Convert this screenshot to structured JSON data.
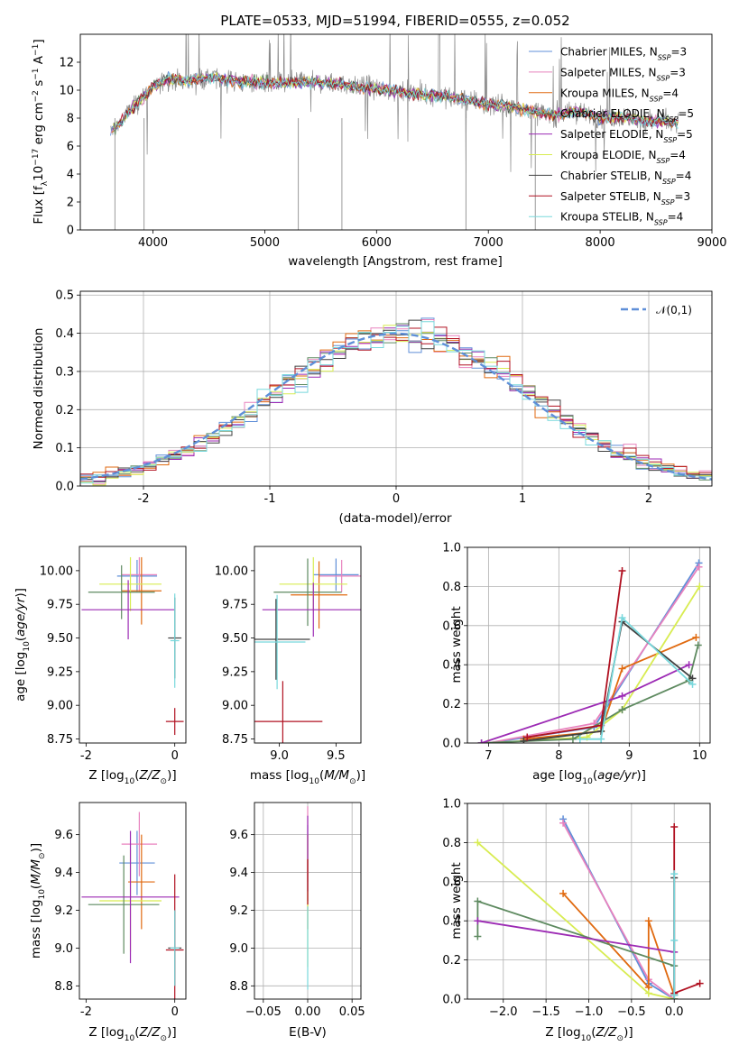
{
  "figure": {
    "title": "PLATE=0533, MJD=51994, FIBERID=0555, z=0.052"
  },
  "chart_data": [
    {
      "id": "spectrum",
      "type": "line",
      "xlabel": "wavelength [Angstrom, rest frame]",
      "ylabel": "Flux [f_λ 10^-17 erg cm^-2 s^-1 A^-1]",
      "xlim": [
        3350,
        9000
      ],
      "ylim": [
        0,
        14
      ],
      "xticks": [
        4000,
        5000,
        6000,
        7000,
        8000,
        9000
      ],
      "yticks": [
        0,
        2,
        4,
        6,
        8,
        10,
        12
      ],
      "legend_position": "top-right",
      "observed_continuum": [
        [
          3620,
          7.0
        ],
        [
          3700,
          7.6
        ],
        [
          3800,
          8.6
        ],
        [
          3900,
          9.4
        ],
        [
          4000,
          10.2
        ],
        [
          4100,
          10.7
        ],
        [
          4200,
          10.8
        ],
        [
          4300,
          10.6
        ],
        [
          4400,
          10.8
        ],
        [
          4500,
          10.9
        ],
        [
          4600,
          10.8
        ],
        [
          4700,
          10.7
        ],
        [
          4800,
          10.6
        ],
        [
          4900,
          10.6
        ],
        [
          5000,
          10.5
        ],
        [
          5200,
          10.5
        ],
        [
          5400,
          10.6
        ],
        [
          5600,
          10.5
        ],
        [
          5800,
          10.3
        ],
        [
          6000,
          10.1
        ],
        [
          6200,
          9.9
        ],
        [
          6400,
          9.7
        ],
        [
          6600,
          9.6
        ],
        [
          6800,
          9.3
        ],
        [
          7000,
          9.0
        ],
        [
          7200,
          8.8
        ],
        [
          7400,
          8.5
        ],
        [
          7600,
          8.2
        ],
        [
          7800,
          8.5
        ],
        [
          8000,
          8.0
        ],
        [
          8200,
          8.1
        ],
        [
          8400,
          7.8
        ],
        [
          8600,
          7.8
        ],
        [
          8700,
          7.6
        ]
      ],
      "model_range": [
        3620,
        8700
      ],
      "series": [
        {
          "name": "Chabrier MILES, N_SSP=3",
          "color": "#5f8fd8"
        },
        {
          "name": "Salpeter MILES, N_SSP=3",
          "color": "#e882be"
        },
        {
          "name": "Kroupa MILES, N_SSP=4",
          "color": "#e06a10"
        },
        {
          "name": "Chabrier ELODIE, N_SSP=5",
          "color": "#5e8a60"
        },
        {
          "name": "Salpeter ELODIE, N_SSP=5",
          "color": "#9c2ab4"
        },
        {
          "name": "Kroupa ELODIE, N_SSP=4",
          "color": "#d8ec52"
        },
        {
          "name": "Chabrier STELIB, N_SSP=4",
          "color": "#404040"
        },
        {
          "name": "Salpeter STELIB, N_SSP=3",
          "color": "#b01020"
        },
        {
          "name": "Kroupa STELIB, N_SSP=4",
          "color": "#78d8dc"
        }
      ]
    },
    {
      "id": "residuals",
      "type": "histogram",
      "xlabel": "(data-model)/error",
      "ylabel": "Normed distribution",
      "xlim": [
        -2.5,
        2.5
      ],
      "ylim": [
        0,
        0.51
      ],
      "xticks": [
        -2,
        -1,
        0,
        1,
        2
      ],
      "yticks": [
        0.0,
        0.1,
        0.2,
        0.3,
        0.4,
        0.5
      ],
      "grid": true,
      "legend_position": "top-right",
      "reference": {
        "name": "𝒩(0,1)",
        "color": "#5f8fd8",
        "style": "dashed"
      },
      "bin_width": 0.1
    },
    {
      "id": "age_vs_Z",
      "type": "errorbar",
      "xlabel": "Z [log10(Z/Z⊙)]",
      "ylabel": "age  [log10(age/yr)]",
      "xlim": [
        -2.15,
        0.25
      ],
      "ylim": [
        8.72,
        10.18
      ],
      "xticks": [
        -2,
        0
      ],
      "yticks": [
        8.75,
        9.0,
        9.25,
        9.5,
        9.75,
        10.0
      ],
      "points": [
        {
          "color": "#5f8fd8",
          "x": -0.85,
          "xerr": 0.45,
          "y": 9.96,
          "yerr": 0.12
        },
        {
          "color": "#e882be",
          "x": -0.8,
          "xerr": 0.4,
          "y": 9.97,
          "yerr": 0.13
        },
        {
          "color": "#e06a10",
          "x": -0.75,
          "xerr": 0.45,
          "y": 9.85,
          "yerr": 0.25
        },
        {
          "color": "#d8ec52",
          "x": -1.0,
          "xerr": 0.7,
          "y": 9.9,
          "yerr": 0.2
        },
        {
          "color": "#5e8a60",
          "x": -1.2,
          "xerr": 0.75,
          "y": 9.84,
          "yerr": 0.2
        },
        {
          "color": "#9c2ab4",
          "x": -1.05,
          "xerr": 1.05,
          "y": 9.71,
          "yerr": 0.22
        },
        {
          "color": "#404040",
          "x": 0.0,
          "xerr": 0.15,
          "y": 9.5,
          "yerr": 0.3
        },
        {
          "color": "#b01020",
          "x": 0.0,
          "xerr": 0.2,
          "y": 8.88,
          "yerr": 0.1
        },
        {
          "color": "#78d8dc",
          "x": 0.0,
          "xerr": 0.1,
          "y": 9.48,
          "yerr": 0.35
        }
      ]
    },
    {
      "id": "age_vs_mass",
      "type": "errorbar",
      "xlabel": "mass [log10(M/M⊙)]",
      "ylabel": "",
      "xlim": [
        8.78,
        9.72
      ],
      "ylim": [
        8.72,
        10.18
      ],
      "xticks": [
        9.0,
        9.5
      ],
      "yticks": [
        8.75,
        9.0,
        9.25,
        9.5,
        9.75,
        10.0
      ],
      "points": [
        {
          "color": "#5f8fd8",
          "x": 9.5,
          "xerr": 0.2,
          "y": 9.97,
          "yerr": 0.12
        },
        {
          "color": "#e882be",
          "x": 9.55,
          "xerr": 0.2,
          "y": 9.96,
          "yerr": 0.12
        },
        {
          "color": "#e06a10",
          "x": 9.35,
          "xerr": 0.25,
          "y": 9.82,
          "yerr": 0.25
        },
        {
          "color": "#d8ec52",
          "x": 9.3,
          "xerr": 0.3,
          "y": 9.9,
          "yerr": 0.2
        },
        {
          "color": "#5e8a60",
          "x": 9.25,
          "xerr": 0.3,
          "y": 9.84,
          "yerr": 0.25
        },
        {
          "color": "#9c2ab4",
          "x": 9.3,
          "xerr": 0.45,
          "y": 9.71,
          "yerr": 0.2
        },
        {
          "color": "#404040",
          "x": 8.97,
          "xerr": 0.3,
          "y": 9.49,
          "yerr": 0.3
        },
        {
          "color": "#b01020",
          "x": 9.03,
          "xerr": 0.35,
          "y": 8.88,
          "yerr": 0.3
        },
        {
          "color": "#78d8dc",
          "x": 8.98,
          "xerr": 0.25,
          "y": 9.47,
          "yerr": 0.35
        }
      ]
    },
    {
      "id": "weight_vs_age",
      "type": "line",
      "xlabel": "age  [log10(age/yr)]",
      "ylabel": "mass weight",
      "xlim": [
        6.7,
        10.15
      ],
      "ylim": [
        0,
        1.0
      ],
      "xticks": [
        7,
        8,
        9,
        10
      ],
      "yticks": [
        0.0,
        0.2,
        0.4,
        0.6,
        0.8,
        1.0
      ],
      "grid": true,
      "series": [
        {
          "color": "#5f8fd8",
          "x": [
            7.0,
            8.5,
            9.99
          ],
          "y": [
            0.0,
            0.08,
            0.92
          ]
        },
        {
          "color": "#e882be",
          "x": [
            7.0,
            8.5,
            9.99
          ],
          "y": [
            0.0,
            0.1,
            0.9
          ]
        },
        {
          "color": "#e06a10",
          "x": [
            7.5,
            8.6,
            8.9,
            9.95
          ],
          "y": [
            0.02,
            0.06,
            0.38,
            0.54
          ]
        },
        {
          "color": "#d8ec52",
          "x": [
            7.0,
            8.4,
            8.9,
            10.0
          ],
          "y": [
            0.0,
            0.03,
            0.17,
            0.8
          ]
        },
        {
          "color": "#5e8a60",
          "x": [
            6.9,
            8.2,
            8.9,
            9.85,
            9.98
          ],
          "y": [
            0.0,
            0.02,
            0.17,
            0.32,
            0.5
          ]
        },
        {
          "color": "#9c2ab4",
          "x": [
            6.9,
            8.9,
            9.85
          ],
          "y": [
            0.0,
            0.24,
            0.4
          ]
        },
        {
          "color": "#404040",
          "x": [
            7.5,
            8.6,
            8.9,
            9.9
          ],
          "y": [
            0.01,
            0.06,
            0.62,
            0.33
          ]
        },
        {
          "color": "#b01020",
          "x": [
            7.55,
            8.6,
            8.9
          ],
          "y": [
            0.03,
            0.09,
            0.88
          ]
        },
        {
          "color": "#78d8dc",
          "x": [
            8.3,
            8.6,
            8.9,
            9.9
          ],
          "y": [
            0.02,
            0.02,
            0.64,
            0.3
          ]
        }
      ]
    },
    {
      "id": "mass_vs_Z",
      "type": "errorbar",
      "xlabel": "Z [log10(Z/Z⊙)]",
      "ylabel": "mass [log10(M/M⊙)]",
      "xlim": [
        -2.15,
        0.25
      ],
      "ylim": [
        8.73,
        9.77
      ],
      "xticks": [
        -2,
        0
      ],
      "yticks": [
        8.8,
        9.0,
        9.2,
        9.4,
        9.6
      ],
      "points": [
        {
          "color": "#5f8fd8",
          "x": -0.85,
          "xerr": 0.4,
          "y": 9.45,
          "yerr": 0.17
        },
        {
          "color": "#e882be",
          "x": -0.8,
          "xerr": 0.4,
          "y": 9.55,
          "yerr": 0.17
        },
        {
          "color": "#e06a10",
          "x": -0.75,
          "xerr": 0.3,
          "y": 9.35,
          "yerr": 0.25
        },
        {
          "color": "#d8ec52",
          "x": -1.0,
          "xerr": 0.7,
          "y": 9.25,
          "yerr": 0.27
        },
        {
          "color": "#5e8a60",
          "x": -1.15,
          "xerr": 0.8,
          "y": 9.23,
          "yerr": 0.26
        },
        {
          "color": "#9c2ab4",
          "x": -1.0,
          "xerr": 1.1,
          "y": 9.27,
          "yerr": 0.35
        },
        {
          "color": "#404040",
          "x": 0.0,
          "xerr": 0.15,
          "y": 9.0,
          "yerr": 0.2
        },
        {
          "color": "#b01020",
          "x": 0.0,
          "xerr": 0.2,
          "y": 8.99,
          "yerr": 0.4
        },
        {
          "color": "#78d8dc",
          "x": 0.0,
          "xerr": 0.1,
          "y": 9.0,
          "yerr": 0.2
        }
      ]
    },
    {
      "id": "mass_vs_ebv",
      "type": "errorbar",
      "xlabel": "E(B-V)",
      "ylabel": "",
      "xlim": [
        -0.06,
        0.06
      ],
      "ylim": [
        8.73,
        9.77
      ],
      "xticks": [
        -0.05,
        0.0,
        0.05
      ],
      "xticklabels": [
        "−0.05",
        "0.00",
        "0.05"
      ],
      "yticks": [
        8.8,
        9.0,
        9.2,
        9.4,
        9.6
      ],
      "grid": true,
      "points": [
        {
          "color": "#5f8fd8",
          "x": 0.0,
          "xerr": 0.0,
          "y": 9.45,
          "yerr": 0.2
        },
        {
          "color": "#e882be",
          "x": 0.0,
          "xerr": 0.0,
          "y": 9.55,
          "yerr": 0.2
        },
        {
          "color": "#e06a10",
          "x": 0.0,
          "xerr": 0.0,
          "y": 9.35,
          "yerr": 0.25
        },
        {
          "color": "#d8ec52",
          "x": 0.0,
          "xerr": 0.0,
          "y": 9.25,
          "yerr": 0.35
        },
        {
          "color": "#9c2ab4",
          "x": 0.0,
          "xerr": 0.0,
          "y": 9.5,
          "yerr": 0.2
        },
        {
          "color": "#b01020",
          "x": 0.0,
          "xerr": 0.0,
          "y": 9.35,
          "yerr": 0.12
        },
        {
          "color": "#78d8dc",
          "x": 0.0,
          "xerr": 0.0,
          "y": 9.0,
          "yerr": 0.22
        }
      ]
    },
    {
      "id": "weight_vs_Z",
      "type": "line",
      "xlabel": "Z [log10(Z/Z⊙)]",
      "ylabel": "mass weight",
      "xlim": [
        -2.42,
        0.42
      ],
      "ylim": [
        0,
        1.0
      ],
      "xticks": [
        -2.0,
        -1.5,
        -1.0,
        -0.5,
        0.0
      ],
      "xticklabels": [
        "−2.0",
        "−1.5",
        "−1.0",
        "−0.5",
        "0.0"
      ],
      "yticks": [
        0.0,
        0.2,
        0.4,
        0.6,
        0.8,
        1.0
      ],
      "grid": true,
      "series": [
        {
          "color": "#5f8fd8",
          "x": [
            -1.3,
            -0.3,
            0.0
          ],
          "y": [
            0.92,
            0.08,
            0.0
          ]
        },
        {
          "color": "#e882be",
          "x": [
            -1.3,
            -0.3,
            0.0
          ],
          "y": [
            0.9,
            0.1,
            0.0
          ]
        },
        {
          "color": "#e06a10",
          "x": [
            -1.3,
            -0.3,
            -0.3,
            0.0
          ],
          "y": [
            0.54,
            0.06,
            0.4,
            0.02
          ]
        },
        {
          "color": "#d8ec52",
          "x": [
            -2.3,
            -0.3,
            0.0
          ],
          "y": [
            0.8,
            0.03,
            0.0
          ]
        },
        {
          "color": "#5e8a60",
          "x": [
            -2.3,
            -2.3,
            0.0,
            0.0
          ],
          "y": [
            0.32,
            0.5,
            0.17,
            0.0
          ]
        },
        {
          "color": "#9c2ab4",
          "x": [
            -2.3,
            0.0
          ],
          "y": [
            0.4,
            0.24
          ]
        },
        {
          "color": "#404040",
          "x": [
            0.0,
            0.0
          ],
          "y": [
            0.02,
            0.62
          ]
        },
        {
          "color": "#b01020",
          "x": [
            0.0,
            0.0,
            0.3
          ],
          "y": [
            0.88,
            0.03,
            0.08
          ]
        },
        {
          "color": "#78d8dc",
          "x": [
            0.0,
            0.0,
            0.0
          ],
          "y": [
            0.64,
            0.3,
            0.02
          ]
        }
      ]
    }
  ]
}
